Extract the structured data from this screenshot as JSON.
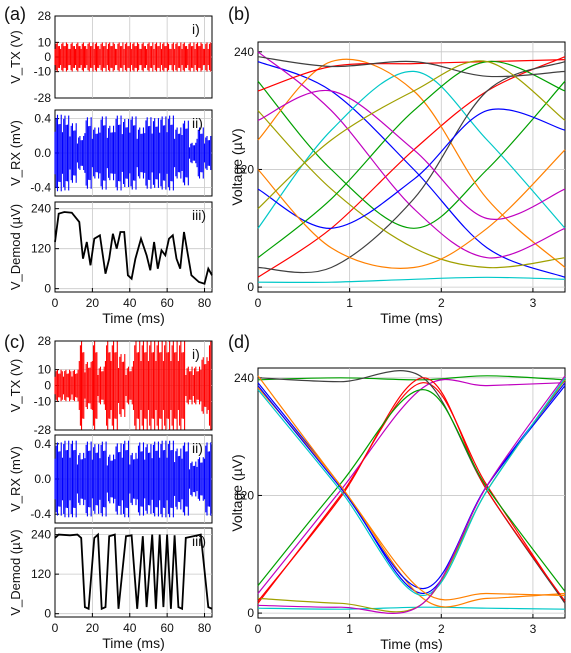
{
  "figure": {
    "panels": [
      "(a)",
      "(b)",
      "(c)",
      "(d)"
    ],
    "row_tags": [
      "i)",
      "ii)",
      "iii)"
    ]
  },
  "colors": {
    "tx": "#ff0000",
    "rx": "#0000ff",
    "demod": "#000000",
    "grid": "#c8c8c8"
  },
  "chart_data": [
    {
      "id": "a-i",
      "type": "line",
      "panel": "(a)",
      "row": "i)",
      "ylabel": "V_TX (V)",
      "yticks": [
        "28",
        "10",
        "0",
        "-10",
        "-28"
      ],
      "ylim": [
        -28,
        28
      ],
      "x": [
        0,
        3,
        8,
        11,
        14,
        17,
        21,
        24,
        28,
        33,
        37,
        41,
        46,
        49,
        53,
        57,
        62,
        64,
        68,
        71,
        75,
        80,
        82,
        84
      ],
      "y": [
        10,
        -10,
        10,
        -10,
        10,
        -10,
        10,
        -10,
        10,
        -10,
        10,
        -10,
        10,
        -10,
        10,
        -10,
        10,
        -10,
        10,
        -10,
        10,
        -10,
        10,
        -10
      ]
    },
    {
      "id": "a-ii",
      "type": "line",
      "panel": "(a)",
      "row": "ii)",
      "ylabel": "V_RX (mV)",
      "yticks": [
        "0.4",
        "0.0",
        "-0.4"
      ],
      "ylim": [
        -0.5,
        0.5
      ],
      "x": [
        0,
        4,
        8,
        12,
        16,
        20,
        24,
        28,
        32,
        36,
        40,
        44,
        48,
        52,
        56,
        60,
        64,
        68,
        72,
        76,
        80,
        84
      ],
      "y": [
        0.45,
        0.44,
        0.35,
        0.2,
        0.42,
        0.3,
        0.43,
        0.32,
        0.44,
        0.4,
        0.43,
        0.3,
        0.42,
        0.41,
        0.43,
        0.44,
        0.3,
        0.38,
        0.12,
        0.3,
        0.2,
        0.1
      ]
    },
    {
      "id": "a-iii",
      "type": "line",
      "panel": "(a)",
      "row": "iii)",
      "ylabel": "V_Demod (µV)",
      "yticks": [
        "240",
        "120",
        "0"
      ],
      "ylim": [
        -10,
        260
      ],
      "x": [
        0,
        2,
        5,
        9,
        13,
        15,
        17,
        19,
        21,
        24,
        27,
        29,
        31,
        33,
        35,
        37,
        39,
        41,
        43,
        46,
        49,
        51,
        53,
        55,
        57,
        59,
        61,
        63,
        65,
        67,
        69,
        73,
        77,
        80,
        82,
        84
      ],
      "y": [
        140,
        225,
        230,
        228,
        200,
        90,
        140,
        70,
        150,
        160,
        45,
        90,
        165,
        120,
        170,
        170,
        40,
        30,
        90,
        150,
        100,
        55,
        140,
        60,
        115,
        100,
        150,
        160,
        90,
        60,
        170,
        40,
        20,
        15,
        60,
        40
      ]
    },
    {
      "id": "b",
      "type": "line",
      "panel": "(b)",
      "xlabel": "Time (ms)",
      "ylabel": "Voltage (µV)",
      "xticks": [
        "0",
        "1",
        "2",
        "3"
      ],
      "yticks": [
        "240",
        "120",
        "0"
      ],
      "xlim": [
        0,
        3.35
      ],
      "ylim": [
        -5,
        250
      ],
      "series": [
        {
          "color": "#0000ff",
          "x": [
            0,
            0.8,
            1.7,
            2.5,
            3.35
          ],
          "y": [
            230,
            200,
            120,
            40,
            10
          ]
        },
        {
          "color": "#ff0000",
          "x": [
            0,
            0.8,
            1.7,
            2.5,
            3.35
          ],
          "y": [
            10,
            60,
            140,
            200,
            235
          ]
        },
        {
          "color": "#00a000",
          "x": [
            0,
            0.8,
            1.7,
            2.5,
            3.35
          ],
          "y": [
            210,
            120,
            60,
            120,
            210
          ]
        },
        {
          "color": "#00c8c8",
          "x": [
            0,
            0.8,
            1.7,
            2.5,
            3.35
          ],
          "y": [
            60,
            160,
            220,
            150,
            60
          ]
        },
        {
          "color": "#ff8000",
          "x": [
            0,
            0.8,
            1.7,
            2.5,
            3.35
          ],
          "y": [
            150,
            230,
            200,
            90,
            20
          ]
        },
        {
          "color": "#c000c0",
          "x": [
            0,
            0.8,
            1.7,
            2.5,
            3.35
          ],
          "y": [
            240,
            180,
            80,
            30,
            60
          ]
        },
        {
          "color": "#404040",
          "x": [
            0,
            0.8,
            1.7,
            2.5,
            3.35
          ],
          "y": [
            20,
            20,
            90,
            200,
            230
          ]
        },
        {
          "color": "#a0a000",
          "x": [
            0,
            0.8,
            1.7,
            2.5,
            3.35
          ],
          "y": [
            180,
            100,
            40,
            20,
            30
          ]
        },
        {
          "color": "#0000ff",
          "x": [
            0,
            0.8,
            1.7,
            2.5,
            3.35
          ],
          "y": [
            100,
            60,
            110,
            180,
            160
          ]
        },
        {
          "color": "#ff0000",
          "x": [
            0,
            0.8,
            1.7,
            2.5,
            3.35
          ],
          "y": [
            200,
            225,
            228,
            230,
            232
          ]
        },
        {
          "color": "#00a000",
          "x": [
            0,
            0.8,
            1.7,
            2.5,
            3.35
          ],
          "y": [
            30,
            90,
            180,
            230,
            200
          ]
        },
        {
          "color": "#00c8c8",
          "x": [
            0,
            0.8,
            1.7,
            2.5,
            3.35
          ],
          "y": [
            5,
            5,
            8,
            10,
            8
          ]
        },
        {
          "color": "#ff8000",
          "x": [
            0,
            0.8,
            1.7,
            2.5,
            3.35
          ],
          "y": [
            120,
            40,
            20,
            60,
            140
          ]
        },
        {
          "color": "#c000c0",
          "x": [
            0,
            0.8,
            1.7,
            2.5,
            3.35
          ],
          "y": [
            170,
            200,
            140,
            70,
            100
          ]
        },
        {
          "color": "#404040",
          "x": [
            0,
            0.8,
            1.7,
            2.5,
            3.35
          ],
          "y": [
            235,
            225,
            230,
            215,
            220
          ]
        },
        {
          "color": "#a0a000",
          "x": [
            0,
            0.8,
            1.7,
            2.5,
            3.35
          ],
          "y": [
            80,
            150,
            200,
            230,
            170
          ]
        }
      ]
    },
    {
      "id": "c-i",
      "type": "line",
      "panel": "(c)",
      "row": "i)",
      "ylabel": "V_TX (V)",
      "yticks": [
        "28",
        "10",
        "0",
        "-10",
        "-28"
      ],
      "ylim": [
        -28,
        28
      ],
      "x": [
        0,
        13,
        16,
        20,
        23,
        27,
        30,
        34,
        38,
        42,
        46,
        50,
        54,
        58,
        62,
        66,
        70,
        74,
        78,
        82,
        84
      ],
      "y": [
        10,
        28,
        15,
        28,
        12,
        28,
        28,
        20,
        12,
        28,
        28,
        28,
        28,
        28,
        28,
        28,
        12,
        12,
        18,
        28,
        12
      ]
    },
    {
      "id": "c-ii",
      "type": "line",
      "panel": "(c)",
      "row": "ii)",
      "ylabel": "V_RX (mV)",
      "yticks": [
        "0.4",
        "0.0",
        "-0.4"
      ],
      "ylim": [
        -0.5,
        0.5
      ],
      "x": [
        0,
        4,
        8,
        12,
        16,
        20,
        24,
        28,
        32,
        36,
        40,
        44,
        48,
        52,
        56,
        60,
        64,
        68,
        72,
        76,
        80,
        84
      ],
      "y": [
        0.42,
        0.44,
        0.44,
        0.3,
        0.43,
        0.4,
        0.43,
        0.28,
        0.41,
        0.44,
        0.3,
        0.42,
        0.4,
        0.43,
        0.44,
        0.44,
        0.35,
        0.42,
        0.2,
        0.25,
        0.42,
        0.3
      ]
    },
    {
      "id": "c-iii",
      "type": "line",
      "panel": "(c)",
      "row": "iii)",
      "ylabel": "V_Demod (µV)",
      "yticks": [
        "240",
        "120",
        "0"
      ],
      "ylim": [
        -10,
        260
      ],
      "x": [
        0,
        2,
        8,
        12,
        14,
        16,
        18,
        21,
        23,
        25,
        27,
        29,
        32,
        34,
        38,
        41,
        44,
        47,
        49,
        52,
        54,
        56,
        58,
        60,
        62,
        64,
        66,
        68,
        70,
        74,
        78,
        82,
        84
      ],
      "y": [
        230,
        240,
        238,
        240,
        230,
        20,
        15,
        230,
        240,
        15,
        20,
        235,
        240,
        15,
        235,
        238,
        15,
        235,
        20,
        240,
        15,
        240,
        20,
        240,
        15,
        238,
        20,
        15,
        230,
        235,
        240,
        20,
        15
      ]
    },
    {
      "id": "d",
      "type": "line",
      "panel": "(d)",
      "xlabel": "Time (ms)",
      "ylabel": "Voltage (µV)",
      "xticks": [
        "0",
        "1",
        "2",
        "3"
      ],
      "yticks": [
        "240",
        "120",
        "0"
      ],
      "xlim": [
        0,
        3.35
      ],
      "ylim": [
        -5,
        250
      ],
      "series": [
        {
          "color": "#0000ff",
          "x": [
            0,
            0.9,
            1.8,
            2.5,
            3.35
          ],
          "y": [
            235,
            130,
            20,
            130,
            235
          ]
        },
        {
          "color": "#ff0000",
          "x": [
            0,
            0.9,
            1.8,
            2.5,
            3.35
          ],
          "y": [
            10,
            120,
            235,
            130,
            10
          ]
        },
        {
          "color": "#00a000",
          "x": [
            0,
            0.9,
            1.8,
            2.5,
            3.35
          ],
          "y": [
            238,
            240,
            238,
            242,
            238
          ]
        },
        {
          "color": "#00c8c8",
          "x": [
            0,
            0.9,
            1.8,
            2.5,
            3.35
          ],
          "y": [
            5,
            4,
            6,
            5,
            4
          ]
        },
        {
          "color": "#ff8000",
          "x": [
            0,
            0.9,
            1.8,
            2.5,
            3.35
          ],
          "y": [
            230,
            130,
            15,
            15,
            20
          ]
        },
        {
          "color": "#c000c0",
          "x": [
            0,
            0.9,
            1.8,
            2.5,
            3.35
          ],
          "y": [
            20,
            125,
            230,
            232,
            235
          ]
        },
        {
          "color": "#404040",
          "x": [
            0,
            0.9,
            1.8,
            2.5,
            3.35
          ],
          "y": [
            240,
            236,
            240,
            125,
            10
          ]
        },
        {
          "color": "#a0a000",
          "x": [
            0,
            0.9,
            1.8,
            2.5,
            3.35
          ],
          "y": [
            15,
            10,
            10,
            125,
            238
          ]
        },
        {
          "color": "#0000ff",
          "x": [
            0,
            0.9,
            1.8,
            2.5,
            3.35
          ],
          "y": [
            232,
            128,
            25,
            130,
            232
          ]
        },
        {
          "color": "#ff0000",
          "x": [
            0,
            0.9,
            1.8,
            2.5,
            3.35
          ],
          "y": [
            12,
            118,
            240,
            125,
            12
          ]
        },
        {
          "color": "#00a000",
          "x": [
            0,
            0.9,
            1.8,
            2.5,
            3.35
          ],
          "y": [
            28,
            132,
            228,
            128,
            22
          ]
        },
        {
          "color": "#00c8c8",
          "x": [
            0,
            0.9,
            1.8,
            2.5,
            3.35
          ],
          "y": [
            228,
            125,
            18,
            125,
            240
          ]
        },
        {
          "color": "#ff8000",
          "x": [
            0,
            0.9,
            1.8,
            2.5,
            3.35
          ],
          "y": [
            242,
            130,
            22,
            20,
            18
          ]
        },
        {
          "color": "#c000c0",
          "x": [
            0,
            0.9,
            1.8,
            2.5,
            3.35
          ],
          "y": [
            8,
            6,
            10,
            130,
            242
          ]
        }
      ]
    }
  ],
  "xaxis": {
    "label": "Time (ms)",
    "ticks": [
      "0",
      "20",
      "40",
      "60",
      "80"
    ],
    "range": [
      0,
      84
    ]
  }
}
